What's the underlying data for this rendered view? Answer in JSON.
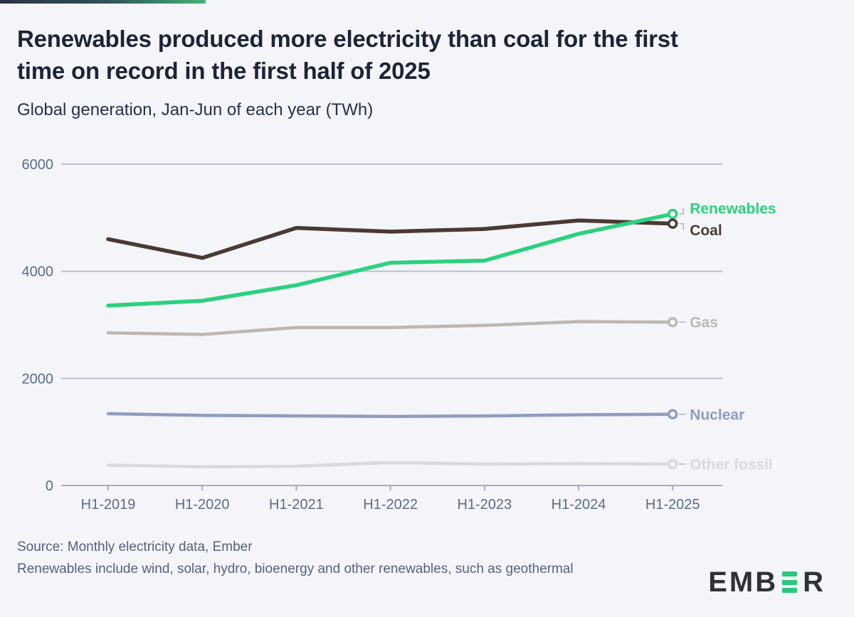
{
  "chart_data": {
    "type": "line",
    "title": "Renewables produced more electricity than coal for the first time on record in the first half of 2025",
    "title_lines": [
      "Renewables produced more electricity than coal for the first",
      "time on record in the first half of 2025"
    ],
    "subtitle": "Global generation, Jan-Jun of each year (TWh)",
    "unit": "TWh",
    "categories": [
      "H1-2019",
      "H1-2020",
      "H1-2021",
      "H1-2022",
      "H1-2023",
      "H1-2024",
      "H1-2025"
    ],
    "ylim": [
      0,
      6000
    ],
    "yticks": [
      0,
      2000,
      4000,
      6000
    ],
    "grid": true,
    "legend_position": "end-of-line-labels",
    "series": [
      {
        "name": "Renewables",
        "color": "#2bd17e",
        "values": [
          3360,
          3450,
          3740,
          4160,
          4200,
          4700,
          5070
        ]
      },
      {
        "name": "Coal",
        "color": "#4a3a33",
        "values": [
          4600,
          4250,
          4810,
          4740,
          4790,
          4950,
          4890
        ]
      },
      {
        "name": "Gas",
        "color": "#bdb7b3",
        "values": [
          2850,
          2820,
          2950,
          2950,
          2990,
          3060,
          3050
        ]
      },
      {
        "name": "Nuclear",
        "color": "#8f9cbe",
        "values": [
          1340,
          1310,
          1300,
          1290,
          1300,
          1320,
          1330
        ]
      },
      {
        "name": "Other fossil",
        "color": "#d9dade",
        "values": [
          380,
          350,
          360,
          430,
          400,
          410,
          400
        ]
      }
    ]
  },
  "footer": {
    "source": "Source: Monthly electricity data, Ember",
    "note": "Renewables include wind, solar, hydro, bioenergy and other renewables, such as geothermal"
  },
  "logo": {
    "name": "EMBER",
    "text_left": "EMB",
    "text_right": "R"
  },
  "colors": {
    "background": "#f4f5f9",
    "title_text": "#1d2438",
    "subtitle_text": "#27304b",
    "axis_text": "#5d6a88",
    "gridline": "#bac0cf",
    "axis_line": "#a6adc0",
    "leader_line": "#b3b6c1",
    "footer_text": "#566080",
    "gradient_bar_start": "#2b3245",
    "gradient_bar_mid": "#2e5157",
    "gradient_bar_end": "#44b275",
    "logo_text": "#2e3237",
    "logo_accent": "#2bc87b"
  }
}
